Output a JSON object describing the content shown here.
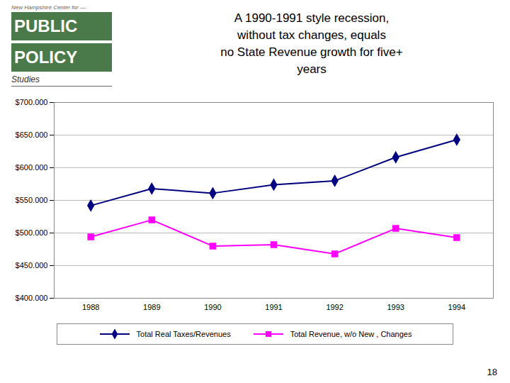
{
  "chart_data": {
    "type": "line",
    "title": "A 1990-1991 style recession,\nwithout tax changes, equals\nno State Revenue growth for five+\nyears",
    "x": [
      1988,
      1989,
      1990,
      1991,
      1992,
      1993,
      1994
    ],
    "xlim": [
      1987.4,
      1994.6
    ],
    "xticks": [
      1988,
      1989,
      1990,
      1991,
      1992,
      1993,
      1994
    ],
    "ylim": [
      400000,
      700000
    ],
    "yticks": [
      {
        "value": 400000,
        "label": "$400.000"
      },
      {
        "value": 450000,
        "label": "$450.000"
      },
      {
        "value": 500000,
        "label": "$500.000"
      },
      {
        "value": 550000,
        "label": "$550.000"
      },
      {
        "value": 600000,
        "label": "$600.000"
      },
      {
        "value": 650000,
        "label": "$650.000"
      },
      {
        "value": 700000,
        "label": "$700.000"
      }
    ],
    "grid": true,
    "legend": "bottom",
    "series": [
      {
        "name": "Total Real Taxes/Revenues",
        "color": "#000080",
        "marker": "diamond",
        "line_style": "solid",
        "values": [
          542000,
          568000,
          561000,
          574000,
          580000,
          616000,
          643000
        ]
      },
      {
        "name": "Total Revenue, w/o New , Changes",
        "color": "#FF00FF",
        "marker": "square",
        "line_style": "solid",
        "values": [
          494000,
          520000,
          480000,
          482000,
          468000,
          507000,
          493000
        ]
      }
    ],
    "annotations": [
      "New Hampshire Center for —",
      "PUBLIC",
      "POLICY",
      "Studies",
      "18"
    ]
  }
}
